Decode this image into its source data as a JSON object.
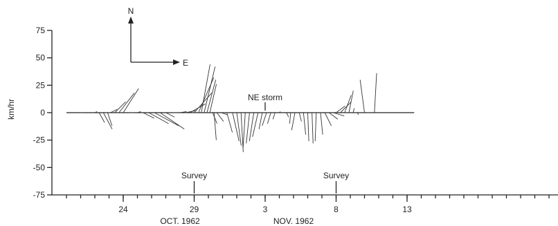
{
  "chart_data": {
    "type": "stick-vector",
    "title": "",
    "ylabel": "km/hr",
    "ylim": [
      -75,
      75
    ],
    "y_ticks": [
      75,
      50,
      25,
      0,
      -25,
      -50,
      -75
    ],
    "y_tick_labels": [
      "75",
      "50",
      "25",
      "0",
      "-25",
      "-50",
      "-75"
    ],
    "x_range_days": [
      20,
      50
    ],
    "x_ticks": [
      {
        "day": 24,
        "label": "24"
      },
      {
        "day": 29,
        "label": "29"
      },
      {
        "day": 34,
        "label": "3"
      },
      {
        "day": 39,
        "label": "8"
      },
      {
        "day": 44,
        "label": "13"
      }
    ],
    "month_labels": [
      {
        "day": 28,
        "label": "OCT. 1962"
      },
      {
        "day": 36,
        "label": "NOV. 1962"
      }
    ],
    "compass": {
      "north_label": "N",
      "east_label": "E"
    },
    "annotations": [
      {
        "text": "NE storm",
        "day": 34.0,
        "y": 0
      },
      {
        "text": "Survey",
        "day": 29,
        "y": -75
      },
      {
        "text": "Survey",
        "day": 39,
        "y": -75
      }
    ],
    "vectors": [
      {
        "day": 20.0,
        "u": 0,
        "v": 0
      },
      {
        "day": 21.0,
        "u": 1,
        "v": 0
      },
      {
        "day": 22.0,
        "u": 2,
        "v": 1
      },
      {
        "day": 22.3,
        "u": 5,
        "v": -9
      },
      {
        "day": 22.6,
        "u": 8,
        "v": -15
      },
      {
        "day": 22.9,
        "u": 4,
        "v": -12
      },
      {
        "day": 23.1,
        "u": 6,
        "v": 3
      },
      {
        "day": 23.4,
        "u": 10,
        "v": 10
      },
      {
        "day": 23.7,
        "u": 14,
        "v": 18
      },
      {
        "day": 24.0,
        "u": 14,
        "v": 22
      },
      {
        "day": 24.5,
        "u": 4,
        "v": 0
      },
      {
        "day": 25.0,
        "u": 3,
        "v": 1
      },
      {
        "day": 25.4,
        "u": 10,
        "v": -5
      },
      {
        "day": 25.8,
        "u": 18,
        "v": -10
      },
      {
        "day": 26.2,
        "u": 22,
        "v": -12
      },
      {
        "day": 26.6,
        "u": 22,
        "v": -15
      },
      {
        "day": 27.0,
        "u": 8,
        "v": -4
      },
      {
        "day": 27.5,
        "u": 4,
        "v": 0
      },
      {
        "day": 28.0,
        "u": 6,
        "v": 1
      },
      {
        "day": 28.4,
        "u": 10,
        "v": 2
      },
      {
        "day": 28.7,
        "u": 14,
        "v": 8
      },
      {
        "day": 29.0,
        "u": 16,
        "v": 18
      },
      {
        "day": 29.3,
        "u": 14,
        "v": 32
      },
      {
        "day": 29.5,
        "u": 8,
        "v": 44
      },
      {
        "day": 29.7,
        "u": 10,
        "v": 42
      },
      {
        "day": 29.9,
        "u": 8,
        "v": 30
      },
      {
        "day": 30.1,
        "u": 6,
        "v": 26
      },
      {
        "day": 30.3,
        "u": 4,
        "v": -10
      },
      {
        "day": 30.4,
        "u": 2,
        "v": -25
      },
      {
        "day": 30.6,
        "u": 6,
        "v": -8
      },
      {
        "day": 30.9,
        "u": 6,
        "v": -2
      },
      {
        "day": 31.3,
        "u": 5,
        "v": -18
      },
      {
        "day": 31.7,
        "u": 6,
        "v": -26
      },
      {
        "day": 32.0,
        "u": 4,
        "v": -30
      },
      {
        "day": 32.3,
        "u": 2,
        "v": -36
      },
      {
        "day": 32.6,
        "u": -2,
        "v": -32
      },
      {
        "day": 32.9,
        "u": -3,
        "v": -28
      },
      {
        "day": 33.2,
        "u": -4,
        "v": -26
      },
      {
        "day": 33.5,
        "u": -5,
        "v": -22
      },
      {
        "day": 33.8,
        "u": -3,
        "v": -15
      },
      {
        "day": 34.1,
        "u": -4,
        "v": -12
      },
      {
        "day": 34.4,
        "u": -3,
        "v": -10
      },
      {
        "day": 34.7,
        "u": -2,
        "v": -6
      },
      {
        "day": 35.0,
        "u": 1,
        "v": 1
      },
      {
        "day": 35.5,
        "u": 2,
        "v": -4
      },
      {
        "day": 35.8,
        "u": -1,
        "v": -10
      },
      {
        "day": 36.1,
        "u": -3,
        "v": -16
      },
      {
        "day": 36.4,
        "u": 2,
        "v": -8
      },
      {
        "day": 36.7,
        "u": 2,
        "v": -20
      },
      {
        "day": 37.0,
        "u": 1,
        "v": -26
      },
      {
        "day": 37.3,
        "u": 1,
        "v": -28
      },
      {
        "day": 37.6,
        "u": -1,
        "v": -26
      },
      {
        "day": 37.9,
        "u": 2,
        "v": -20
      },
      {
        "day": 38.2,
        "u": 6,
        "v": -12
      },
      {
        "day": 38.5,
        "u": 8,
        "v": -6
      },
      {
        "day": 38.8,
        "u": 10,
        "v": -3
      },
      {
        "day": 39.0,
        "u": 8,
        "v": 6
      },
      {
        "day": 39.3,
        "u": 10,
        "v": 10
      },
      {
        "day": 39.6,
        "u": 6,
        "v": 16
      },
      {
        "day": 39.9,
        "u": 4,
        "v": 20
      },
      {
        "day": 40.2,
        "u": 1,
        "v": 4
      },
      {
        "day": 40.5,
        "u": 1,
        "v": -2
      },
      {
        "day": 41.0,
        "u": -4,
        "v": 30
      },
      {
        "day": 41.3,
        "u": -1,
        "v": 0
      },
      {
        "day": 41.7,
        "u": 2,
        "v": 36
      },
      {
        "day": 42.5,
        "u": 0,
        "v": 0
      },
      {
        "day": 43.5,
        "u": 0,
        "v": 0
      },
      {
        "day": 44.5,
        "u": 0,
        "v": 0
      }
    ],
    "grid": false
  }
}
